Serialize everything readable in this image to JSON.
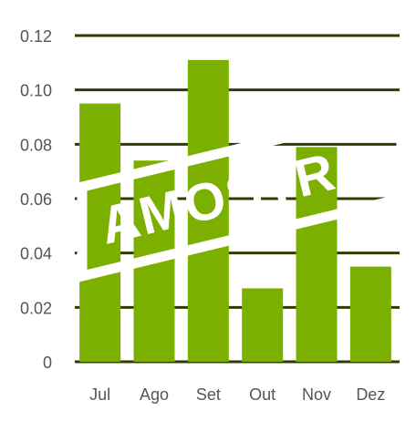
{
  "colors": {
    "bar": "#7cb000",
    "grid": "#2f3b00",
    "tick_text": "#555555",
    "watermark": "#ffffff"
  },
  "watermark": {
    "text": "AMOSTRA"
  },
  "chart_data": {
    "type": "bar",
    "title": "",
    "xlabel": "",
    "ylabel": "",
    "categories": [
      "Jul",
      "Ago",
      "Set",
      "Out",
      "Nov",
      "Dez"
    ],
    "values": [
      0.095,
      0.074,
      0.111,
      0.027,
      0.079,
      0.035
    ],
    "ylim": [
      0,
      0.12
    ],
    "yticks": [
      "0",
      "0.02",
      "0.04",
      "0.06",
      "0.08",
      "0.10",
      "0.12"
    ],
    "grid": true,
    "legend": "none"
  }
}
